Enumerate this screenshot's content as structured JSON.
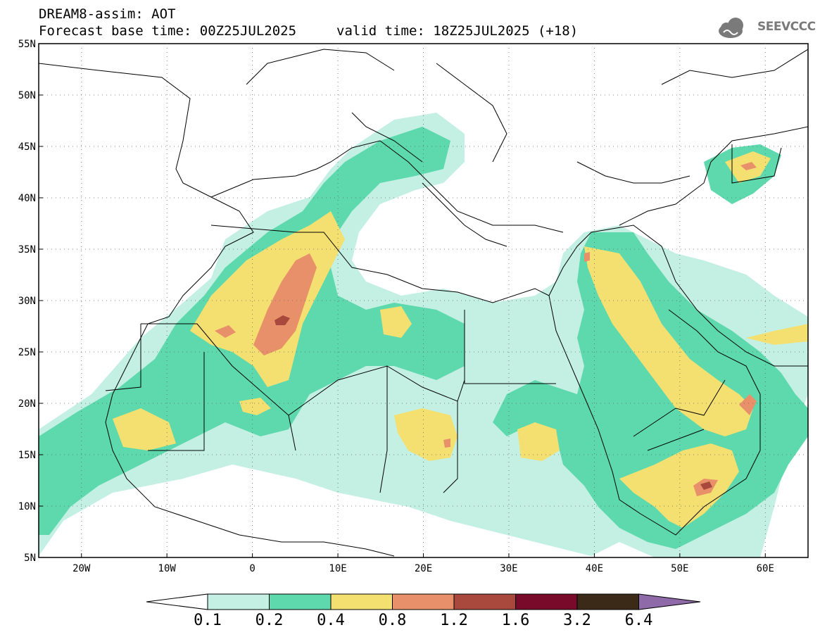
{
  "header": {
    "line1": "DREAM8-assim: AOT",
    "line2": "Forecast base time: 00Z25JUL2025",
    "valid": "valid time: 18Z25JUL2025 (+18)"
  },
  "logo": {
    "text": "SEEVCCC",
    "icon": "cloud-logo-icon",
    "color": "#7a7a7a"
  },
  "map": {
    "lon_range": [
      -25,
      65
    ],
    "lat_range": [
      5,
      55
    ],
    "lat_labels": [
      "55N",
      "50N",
      "45N",
      "40N",
      "35N",
      "30N",
      "25N",
      "20N",
      "15N",
      "10N",
      "5N"
    ],
    "lon_labels": [
      "20W",
      "10W",
      "0",
      "10E",
      "20E",
      "30E",
      "40E",
      "50E",
      "60E"
    ],
    "gridlines": "dotted"
  },
  "colorbar": {
    "labels": [
      "0.1",
      "0.2",
      "0.4",
      "0.8",
      "1.2",
      "1.6",
      "3.2",
      "6.4"
    ],
    "colors": [
      "#ffffff",
      "#c4f0e4",
      "#5dd9ad",
      "#f4e070",
      "#e8906a",
      "#a9483d",
      "#7a0a2a",
      "#3c2a18",
      "#8e6aa8"
    ]
  }
}
